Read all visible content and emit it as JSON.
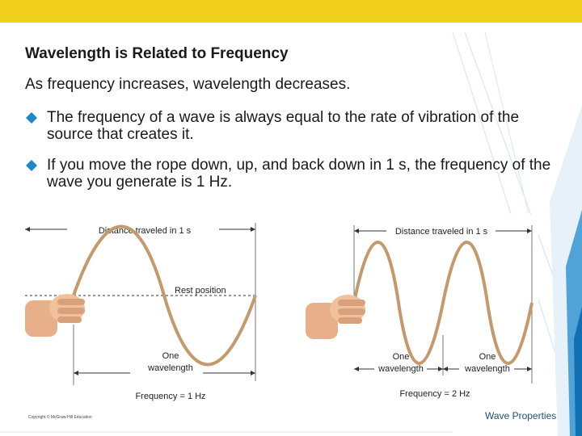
{
  "slide": {
    "title": "Wavelength is Related to Frequency",
    "lead": "As frequency increases, wavelength decreases.",
    "bullets": [
      {
        "text": "The frequency of a wave is always equal to the rate of vibration of the source that creates it."
      },
      {
        "text": "If you move the rope down, up, and back down in 1 s, the frequency of the wave you generate is 1 Hz."
      }
    ],
    "footer": "Wave Properties",
    "copyright": "Copyright © McGraw-Hill Education"
  },
  "figure_left": {
    "distance_label": "Distance traveled in 1 s",
    "rest_label": "Rest position",
    "wavelength_label_1": "One",
    "wavelength_label_2": "wavelength",
    "frequency_label": "Frequency = 1 Hz"
  },
  "figure_right": {
    "distance_label": "Distance traveled in 1 s",
    "wavelength_a_1": "One",
    "wavelength_a_2": "wavelength",
    "wavelength_b_1": "One",
    "wavelength_b_2": "wavelength",
    "frequency_label": "Frequency = 2 Hz"
  },
  "colors": {
    "top_bar": "#f2d01e",
    "rope": "#c49a6c",
    "accent_lines": "#1e88c9",
    "bullet": "#1e88c9"
  }
}
